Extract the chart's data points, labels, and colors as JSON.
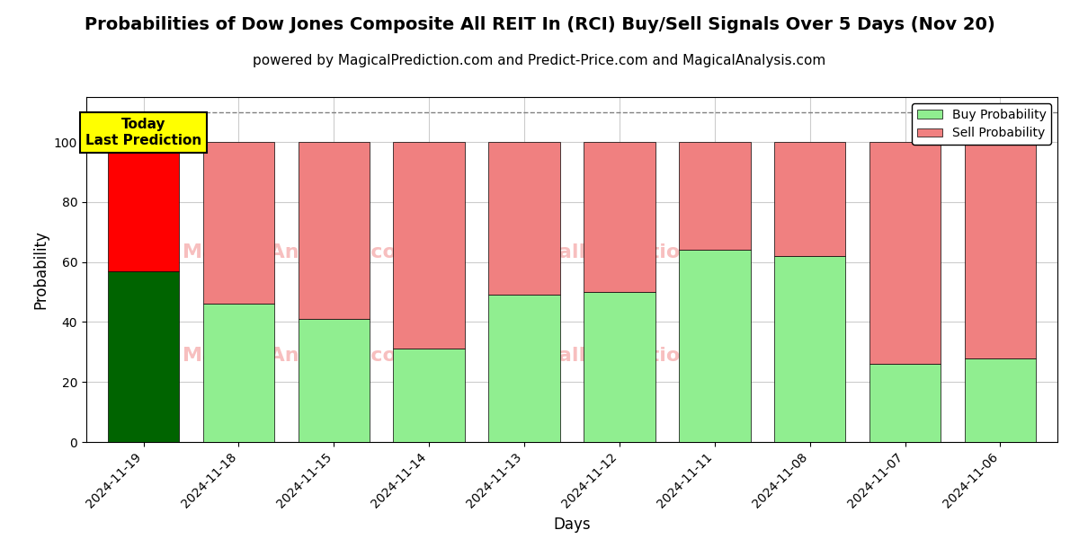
{
  "title": "Probabilities of Dow Jones Composite All REIT In (RCI) Buy/Sell Signals Over 5 Days (Nov 20)",
  "subtitle": "powered by MagicalPrediction.com and Predict-Price.com and MagicalAnalysis.com",
  "xlabel": "Days",
  "ylabel": "Probability",
  "categories": [
    "2024-11-19",
    "2024-11-18",
    "2024-11-15",
    "2024-11-14",
    "2024-11-13",
    "2024-11-12",
    "2024-11-11",
    "2024-11-08",
    "2024-11-07",
    "2024-11-06"
  ],
  "buy_values": [
    57,
    46,
    41,
    31,
    49,
    50,
    64,
    62,
    26,
    28
  ],
  "sell_values": [
    43,
    54,
    59,
    69,
    51,
    50,
    36,
    38,
    74,
    72
  ],
  "today_bar_buy_color": "#006400",
  "today_bar_sell_color": "#FF0000",
  "other_bar_buy_color": "#90EE90",
  "other_bar_sell_color": "#F08080",
  "bar_edge_color": "#000000",
  "background_color": "#ffffff",
  "grid_color": "#cccccc",
  "annotation_box_color": "#FFFF00",
  "annotation_text": "Today\nLast Prediction",
  "dashed_line_y": 110,
  "ylim": [
    0,
    115
  ],
  "yticks": [
    0,
    20,
    40,
    60,
    80,
    100
  ],
  "legend_buy_label": "Buy Probability",
  "legend_sell_label": "Sell Probability",
  "title_fontsize": 14,
  "subtitle_fontsize": 11,
  "axis_label_fontsize": 12,
  "bar_width": 0.75
}
